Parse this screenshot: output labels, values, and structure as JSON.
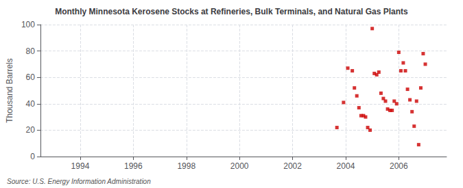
{
  "chart_data": {
    "type": "scatter",
    "title": "Monthly Minnesota Kerosene Stocks at Refineries, Bulk Terminals, and Natural Gas Plants",
    "ylabel": "Thousand Barrels",
    "source": "Source: U.S. Energy Information Administration",
    "x": [
      2003.67,
      2003.92,
      2004.08,
      2004.25,
      2004.33,
      2004.42,
      2004.5,
      2004.58,
      2004.67,
      2004.75,
      2004.83,
      2004.92,
      2005.0,
      2005.08,
      2005.17,
      2005.25,
      2005.33,
      2005.42,
      2005.5,
      2005.58,
      2005.67,
      2005.75,
      2005.83,
      2005.92,
      2006.0,
      2006.08,
      2006.17,
      2006.25,
      2006.33,
      2006.42,
      2006.5,
      2006.58,
      2006.67,
      2006.75,
      2006.83,
      2006.92,
      2007.0
    ],
    "values": [
      22,
      41,
      67,
      65,
      52,
      46,
      37,
      31,
      31,
      30,
      22,
      20,
      97,
      63,
      62,
      64,
      48,
      44,
      42,
      36,
      35,
      35,
      42,
      40,
      79,
      65,
      71,
      65,
      51,
      43,
      34,
      23,
      42,
      9,
      52,
      78,
      70
    ],
    "color": "#cc0000",
    "marker": "square",
    "xlim": [
      1992.5,
      2007.8
    ],
    "xticks": [
      1994,
      1996,
      1998,
      2000,
      2002,
      2004,
      2006
    ],
    "ylim": [
      0,
      100
    ],
    "yticks": [
      0,
      20,
      40,
      60,
      80,
      100
    ],
    "grid": true
  }
}
